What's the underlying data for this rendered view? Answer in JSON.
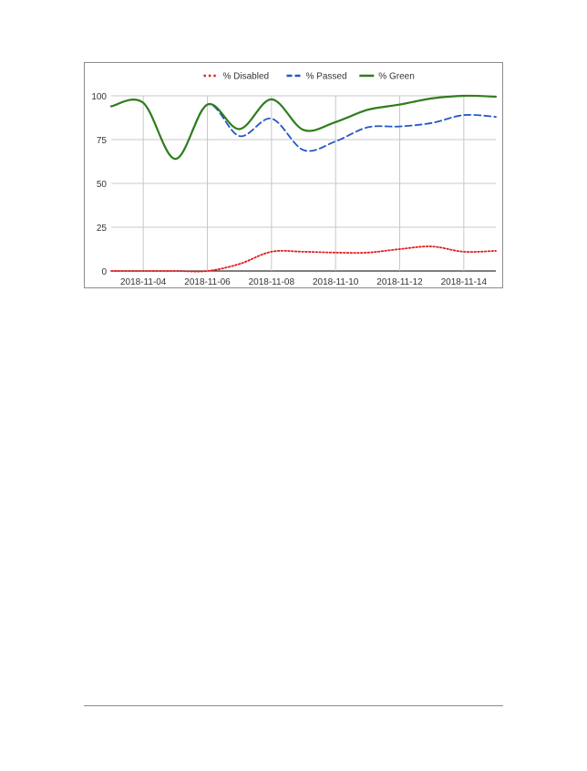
{
  "chart_data": {
    "type": "line",
    "title": "",
    "xlabel": "",
    "ylabel": "",
    "x_tick_labels": [
      "2018-11-04",
      "2018-11-06",
      "2018-11-08",
      "2018-11-10",
      "2018-11-12",
      "2018-11-14"
    ],
    "y_tick_labels": [
      "0",
      "25",
      "50",
      "75",
      "100"
    ],
    "ylim": [
      0,
      100
    ],
    "xlim": [
      "2018-11-03",
      "2018-11-15"
    ],
    "grid": true,
    "legend_position": "top",
    "series": [
      {
        "name": "% Disabled",
        "color": "#e31a1c",
        "style": "dotted",
        "x": [
          "2018-11-03",
          "2018-11-04",
          "2018-11-05",
          "2018-11-06",
          "2018-11-07",
          "2018-11-08",
          "2018-11-09",
          "2018-11-10",
          "2018-11-11",
          "2018-11-12",
          "2018-11-13",
          "2018-11-14",
          "2018-11-15"
        ],
        "y": [
          0,
          0,
          0,
          0,
          4,
          11,
          11,
          10.5,
          10.5,
          12.5,
          14,
          11,
          11.5
        ]
      },
      {
        "name": "% Passed",
        "color": "#2457c8",
        "style": "dashed",
        "x": [
          "2018-11-03",
          "2018-11-04",
          "2018-11-05",
          "2018-11-06",
          "2018-11-07",
          "2018-11-08",
          "2018-11-09",
          "2018-11-10",
          "2018-11-11",
          "2018-11-12",
          "2018-11-13",
          "2018-11-14",
          "2018-11-15"
        ],
        "y": [
          94,
          96,
          64,
          95,
          77,
          87,
          69,
          74,
          82,
          82.5,
          84.5,
          89,
          88
        ]
      },
      {
        "name": "% Green",
        "color": "#2e7d1c",
        "style": "solid",
        "x": [
          "2018-11-03",
          "2018-11-04",
          "2018-11-05",
          "2018-11-06",
          "2018-11-07",
          "2018-11-08",
          "2018-11-09",
          "2018-11-10",
          "2018-11-11",
          "2018-11-12",
          "2018-11-13",
          "2018-11-14",
          "2018-11-15"
        ],
        "y": [
          94,
          96,
          64,
          95,
          81,
          98,
          80.5,
          85,
          92,
          95,
          98.5,
          100,
          99.5
        ]
      }
    ]
  }
}
